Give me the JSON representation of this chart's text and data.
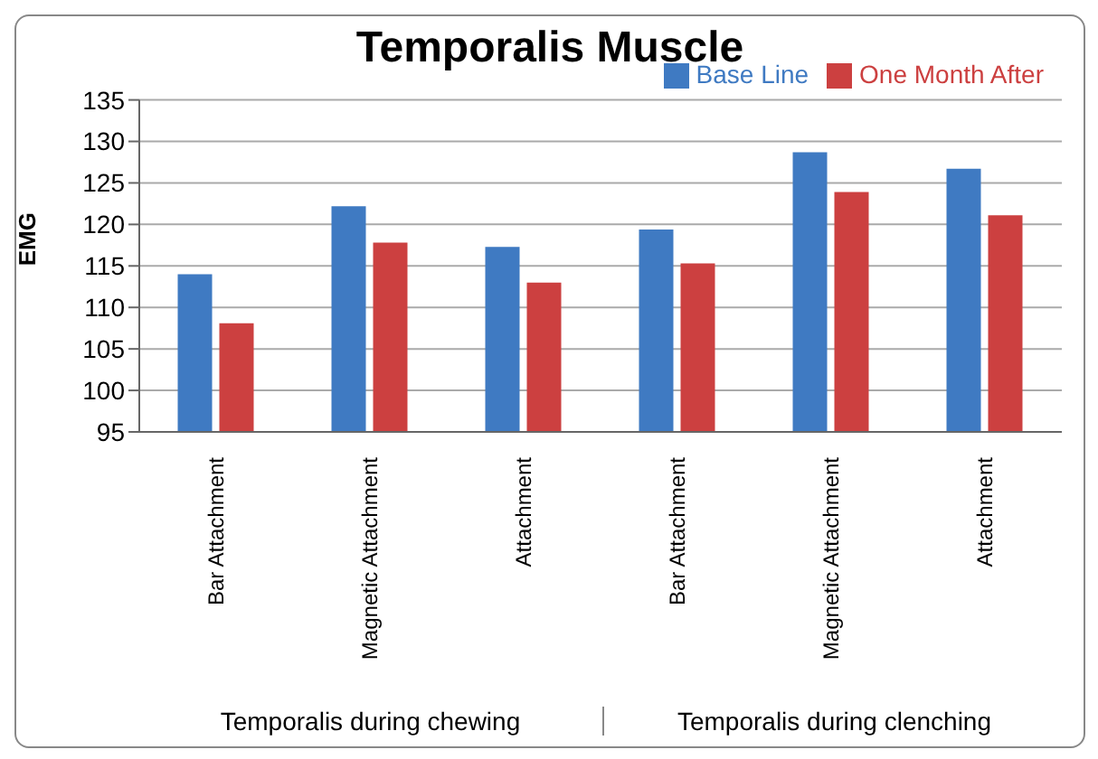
{
  "chart_data": {
    "type": "bar",
    "title": "Temporalis Muscle",
    "ylabel": "EMG",
    "categories": [
      "Bar Attachment",
      "Magnetic Attachment",
      "Attachment",
      "Bar Attachment",
      "Magnetic Attachment",
      "Attachment"
    ],
    "series": [
      {
        "name": "Base Line",
        "color": "#3f7ac2",
        "values": [
          114,
          122.2,
          117.3,
          119.4,
          128.7,
          126.7
        ]
      },
      {
        "name": "One Month After",
        "color": "#cc4040",
        "values": [
          108.1,
          117.8,
          113,
          115.3,
          123.9,
          121.1
        ]
      }
    ],
    "ylim": [
      95,
      135
    ],
    "yticks": [
      95,
      100,
      105,
      110,
      115,
      120,
      125,
      130,
      135
    ],
    "grid": "y",
    "legend": "top right",
    "annotations": [
      "Temporalis during chewing",
      "Temporalis during clenching"
    ]
  }
}
